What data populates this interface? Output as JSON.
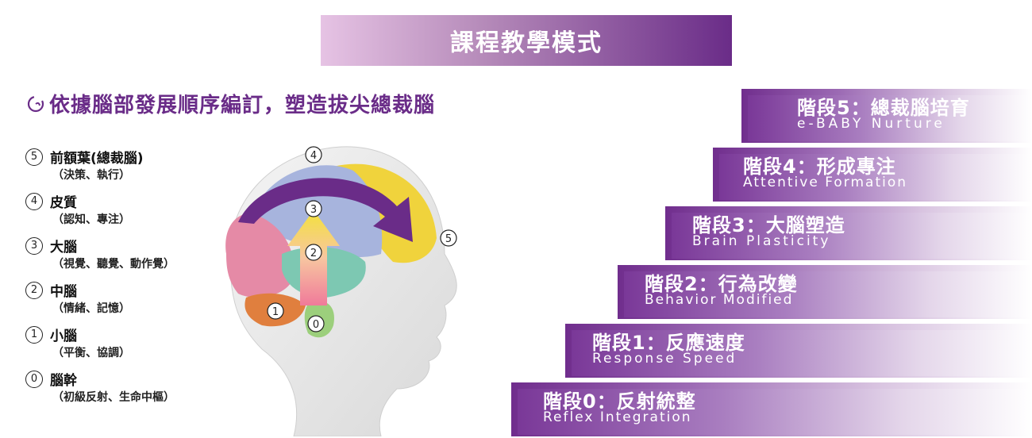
{
  "title": "課程教學模式",
  "subtitle": "依據腦部發展順序編訂，塑造拔尖總裁腦",
  "legend": [
    {
      "num": "5",
      "name": "前額葉(總裁腦)",
      "detail": "（決策、執行）"
    },
    {
      "num": "4",
      "name": "皮質",
      "detail": "（認知、專注）"
    },
    {
      "num": "3",
      "name": "大腦",
      "detail": "（視覺、聽覺、動作覺）"
    },
    {
      "num": "2",
      "name": "中腦",
      "detail": "（情緒、記憶）"
    },
    {
      "num": "1",
      "name": "小腦",
      "detail": "（平衡、協調）"
    },
    {
      "num": "0",
      "name": "腦幹",
      "detail": "（初級反射、生命中樞）"
    }
  ],
  "brain_markers": [
    "4",
    "3",
    "2",
    "1",
    "0",
    "5"
  ],
  "stages": [
    {
      "zh": "階段5：總裁腦培育",
      "en": "e-BABY Nurture"
    },
    {
      "zh": "階段4：形成專注",
      "en": "Attentive Formation"
    },
    {
      "zh": "階段3：大腦塑造",
      "en": "Brain Plasticity"
    },
    {
      "zh": "階段2：行為改變",
      "en": "Behavior Modified"
    },
    {
      "zh": "階段1：反應速度",
      "en": "Response Speed"
    },
    {
      "zh": "階段0：反射統整",
      "en": "Reflex Integration"
    }
  ],
  "colors": {
    "accent": "#6a2c88",
    "frontal": "#f0d33c",
    "cortex": "#a7b4dd",
    "cerebrum_pink": "#e58aa6",
    "midbrain": "#7dc8b2",
    "cerebellum": "#e07f3e",
    "brainstem": "#9ccf7c"
  }
}
